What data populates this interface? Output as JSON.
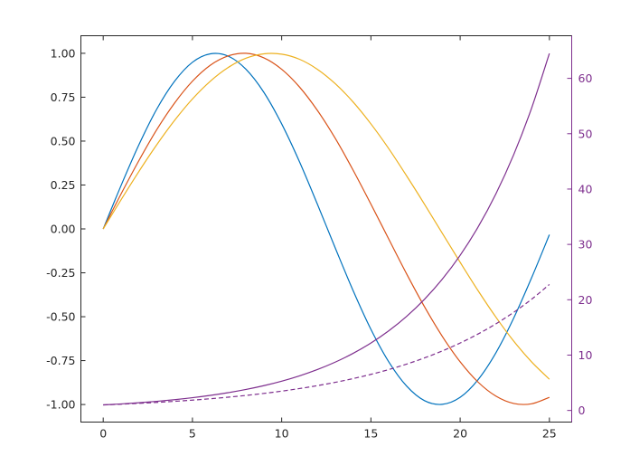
{
  "chart_data": {
    "type": "line",
    "title": "",
    "xlabel": "",
    "ylabel_left": "",
    "ylabel_right": "",
    "xlim": [
      -1.25,
      26.25
    ],
    "ylim_left": [
      -1.1,
      1.1
    ],
    "ylim_right": [
      -2.1,
      67.7
    ],
    "grid": false,
    "box": true,
    "x_ticks": [
      0,
      5,
      10,
      15,
      20,
      25
    ],
    "x_tick_labels": [
      "0",
      "5",
      "10",
      "15",
      "20",
      "25"
    ],
    "y_left_ticks": [
      1,
      0.75,
      0.5,
      0.25,
      0,
      -0.25,
      -0.5,
      -0.75,
      -1
    ],
    "y_left_tick_labels": [
      "1.00",
      "0.75",
      "0.50",
      "0.25",
      "0.00",
      "-0.25",
      "-0.50",
      "-0.75",
      "-1.00"
    ],
    "y_right_ticks": [
      60,
      50,
      40,
      30,
      20,
      10,
      0
    ],
    "y_right_tick_labels": [
      "60",
      "50",
      "40",
      "30",
      "20",
      "10",
      "0"
    ],
    "right_axis_color": "#7E2F8E",
    "x": [
      0,
      1,
      2,
      3,
      4,
      5,
      6,
      7,
      8,
      9,
      10,
      11,
      12,
      13,
      14,
      15,
      16,
      17,
      18,
      19,
      20,
      21,
      22,
      23,
      24,
      25
    ],
    "series": [
      {
        "axis": "left",
        "color": "#0072BD",
        "style": "solid",
        "values": [
          0,
          0.247,
          0.479,
          0.682,
          0.841,
          0.949,
          0.997,
          0.984,
          0.909,
          0.778,
          0.598,
          0.382,
          0.141,
          -0.108,
          -0.351,
          -0.572,
          -0.757,
          -0.895,
          -0.978,
          -0.999,
          -0.959,
          -0.859,
          -0.706,
          -0.508,
          -0.279,
          -0.033
        ]
      },
      {
        "axis": "left",
        "color": "#D95319",
        "style": "solid",
        "values": [
          0,
          0.199,
          0.389,
          0.565,
          0.717,
          0.841,
          0.932,
          0.985,
          1.0,
          0.974,
          0.909,
          0.808,
          0.675,
          0.516,
          0.335,
          0.141,
          -0.058,
          -0.256,
          -0.443,
          -0.612,
          -0.757,
          -0.872,
          -0.952,
          -0.994,
          -0.996,
          -0.959
        ]
      },
      {
        "axis": "left",
        "color": "#EDB120",
        "style": "solid",
        "values": [
          0,
          0.166,
          0.327,
          0.479,
          0.618,
          0.74,
          0.841,
          0.919,
          0.972,
          0.997,
          0.995,
          0.966,
          0.909,
          0.827,
          0.723,
          0.598,
          0.457,
          0.302,
          0.141,
          -0.025,
          -0.19,
          -0.351,
          -0.502,
          -0.639,
          -0.757,
          -0.856
        ]
      },
      {
        "axis": "right",
        "color": "#7E2F8E",
        "style": "solid",
        "values": [
          1,
          1.181,
          1.396,
          1.649,
          1.948,
          2.301,
          2.718,
          3.211,
          3.794,
          4.482,
          5.294,
          6.255,
          7.389,
          8.729,
          10.312,
          12.182,
          14.392,
          17.002,
          20.086,
          23.728,
          28.032,
          33.115,
          39.121,
          46.216,
          54.598,
          64.5
        ]
      },
      {
        "axis": "right",
        "color": "#7E2F8E",
        "style": "dashed",
        "values": [
          1,
          1.133,
          1.284,
          1.455,
          1.649,
          1.868,
          2.117,
          2.398,
          2.718,
          3.08,
          3.49,
          3.955,
          4.482,
          5.078,
          5.755,
          6.521,
          7.389,
          8.373,
          9.488,
          10.751,
          12.182,
          13.804,
          15.643,
          17.725,
          20.086,
          22.76
        ]
      }
    ]
  }
}
